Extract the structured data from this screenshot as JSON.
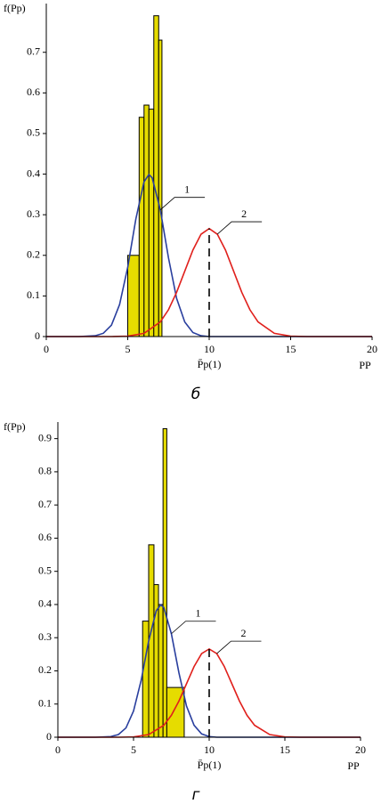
{
  "chart_data": [
    {
      "type": "histogram",
      "ylabel": "f(Pp)",
      "xlabel": "PP",
      "annotation": "P̄p(1)",
      "caption": "б",
      "bins": [
        5.0,
        5.7,
        6.0,
        6.3,
        6.6,
        6.9,
        7.1
      ],
      "values": [
        0.2,
        0.54,
        0.57,
        0.56,
        0.79,
        0.73
      ],
      "color": "#e6dc00",
      "series": [
        {
          "name": "1",
          "color": "#2a3f9e",
          "x": [
            0,
            2,
            3,
            3.5,
            4,
            4.5,
            5,
            5.5,
            6,
            6.3,
            6.5,
            7,
            7.5,
            8,
            8.5,
            9,
            9.5,
            10,
            20
          ],
          "values": [
            0,
            0,
            0.002,
            0.008,
            0.028,
            0.079,
            0.171,
            0.29,
            0.381,
            0.399,
            0.391,
            0.312,
            0.194,
            0.094,
            0.036,
            0.01,
            0.002,
            0,
            0
          ]
        },
        {
          "name": "2",
          "color": "#e0201c",
          "x": [
            0,
            4,
            5,
            6,
            7,
            7.5,
            8,
            8.5,
            9,
            9.5,
            10,
            10.5,
            11,
            11.5,
            12,
            12.5,
            13,
            14,
            15,
            16,
            20
          ],
          "values": [
            0,
            0,
            0.001,
            0.008,
            0.036,
            0.066,
            0.109,
            0.161,
            0.213,
            0.252,
            0.266,
            0.252,
            0.213,
            0.161,
            0.109,
            0.066,
            0.036,
            0.008,
            0.001,
            0,
            0
          ]
        }
      ],
      "marker_x": 10,
      "xlim": [
        0,
        20
      ],
      "xticks": [
        0,
        5,
        10,
        15,
        20
      ],
      "ylim": [
        0,
        0.82
      ],
      "yticks": [
        0,
        0.1,
        0.2,
        0.3,
        0.4,
        0.5,
        0.6,
        0.7
      ]
    },
    {
      "type": "histogram",
      "ylabel": "f(Pp)",
      "xlabel": "PP",
      "annotation": "P̄p(1)",
      "caption": "г",
      "bins": [
        5.6,
        6.0,
        6.35,
        6.65,
        6.95,
        7.2,
        8.35
      ],
      "values": [
        0.35,
        0.58,
        0.46,
        0.4,
        0.93,
        0.15
      ],
      "color": "#e6dc00",
      "series": [
        {
          "name": "1",
          "color": "#2a3f9e",
          "x": [
            0,
            2.5,
            3.5,
            4,
            4.5,
            5,
            5.5,
            6,
            6.5,
            6.8,
            7,
            7.5,
            8,
            8.5,
            9,
            9.5,
            10,
            10.5,
            20
          ],
          "values": [
            0,
            0,
            0.002,
            0.008,
            0.028,
            0.079,
            0.171,
            0.29,
            0.381,
            0.399,
            0.391,
            0.312,
            0.194,
            0.094,
            0.036,
            0.01,
            0.002,
            0,
            0
          ]
        },
        {
          "name": "2",
          "color": "#e0201c",
          "x": [
            0,
            4,
            5,
            6,
            7,
            7.5,
            8,
            8.5,
            9,
            9.5,
            10,
            10.5,
            11,
            11.5,
            12,
            12.5,
            13,
            14,
            15,
            16,
            20
          ],
          "values": [
            0,
            0,
            0.001,
            0.008,
            0.036,
            0.066,
            0.109,
            0.161,
            0.213,
            0.252,
            0.266,
            0.252,
            0.213,
            0.161,
            0.109,
            0.066,
            0.036,
            0.008,
            0.001,
            0,
            0
          ]
        }
      ],
      "marker_x": 10,
      "xlim": [
        0,
        20
      ],
      "xticks": [
        0,
        5,
        10,
        15,
        20
      ],
      "ylim": [
        0,
        0.95
      ],
      "yticks": [
        0,
        0.1,
        0.2,
        0.3,
        0.4,
        0.5,
        0.6,
        0.7,
        0.8,
        0.9
      ]
    }
  ]
}
